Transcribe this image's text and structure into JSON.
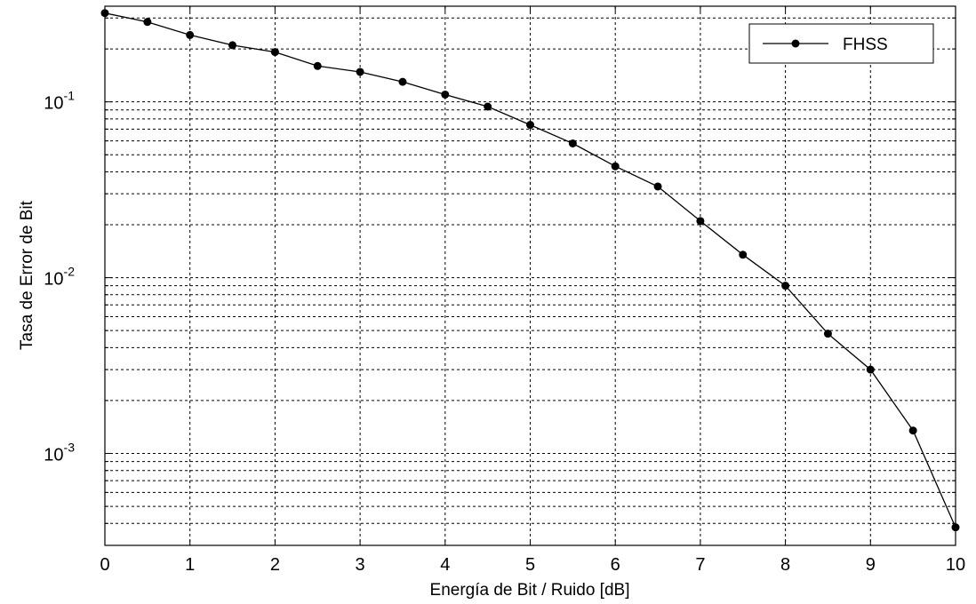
{
  "chart_data": {
    "type": "line",
    "title": "",
    "xlabel": "Energía de Bit / Ruido   [dB]",
    "ylabel": "Tasa de Error de Bit",
    "xlim": [
      0,
      10
    ],
    "ylim": [
      0.0003,
      0.35
    ],
    "yscale": "log",
    "grid": true,
    "legend_position": "top-right",
    "x_ticks": [
      "0",
      "1",
      "2",
      "3",
      "4",
      "5",
      "6",
      "7",
      "8",
      "9",
      "10"
    ],
    "y_ticks": [
      {
        "base": "10",
        "exp": "-3",
        "value": 0.001
      },
      {
        "base": "10",
        "exp": "-2",
        "value": 0.01
      },
      {
        "base": "10",
        "exp": "-1",
        "value": 0.1
      }
    ],
    "series": [
      {
        "name": "FHSS",
        "color": "#000000",
        "marker": "dot",
        "x": [
          0,
          0.5,
          1,
          1.5,
          2,
          2.5,
          3,
          3.5,
          4,
          4.5,
          5,
          5.5,
          6,
          6.5,
          7,
          7.5,
          8,
          8.5,
          9,
          9.5,
          10
        ],
        "y": [
          0.32,
          0.285,
          0.24,
          0.21,
          0.192,
          0.16,
          0.148,
          0.13,
          0.11,
          0.094,
          0.074,
          0.058,
          0.043,
          0.033,
          0.021,
          0.0135,
          0.009,
          0.0048,
          0.003,
          0.00135,
          0.00038
        ]
      }
    ]
  }
}
